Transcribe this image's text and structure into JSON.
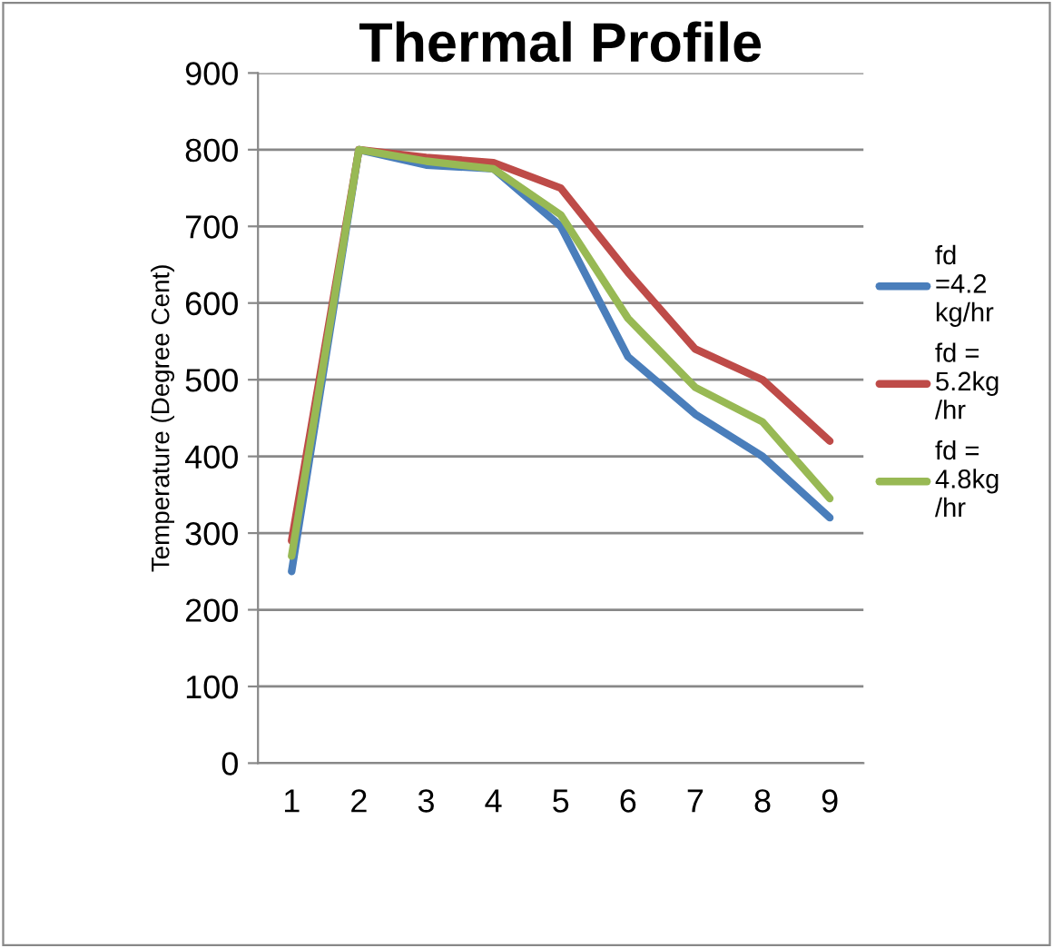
{
  "chart_data": {
    "type": "line",
    "title": "Thermal Profile",
    "ylabel": "Temperature (Degree Cent)",
    "categories": [
      "1",
      "2",
      "3",
      "4",
      "5",
      "6",
      "7",
      "8",
      "9"
    ],
    "series": [
      {
        "name": "fd\n=4.2\nkg/hr",
        "color": "#4a7ebb",
        "values": [
          250,
          800,
          780,
          775,
          700,
          530,
          455,
          400,
          320
        ]
      },
      {
        "name": "fd =\n5.2kg\n/hr",
        "color": "#be4b48",
        "values": [
          290,
          800,
          790,
          783,
          750,
          640,
          540,
          500,
          420
        ]
      },
      {
        "name": "fd =\n4.8kg\n/hr",
        "color": "#98b954",
        "values": [
          270,
          800,
          785,
          775,
          715,
          580,
          490,
          445,
          345
        ]
      }
    ],
    "ylim": [
      0,
      900
    ],
    "yticks": [
      0,
      100,
      200,
      300,
      400,
      500,
      600,
      700,
      800,
      900
    ],
    "grid": "y",
    "legend": "right",
    "line_style": "solid",
    "marker": "none"
  }
}
